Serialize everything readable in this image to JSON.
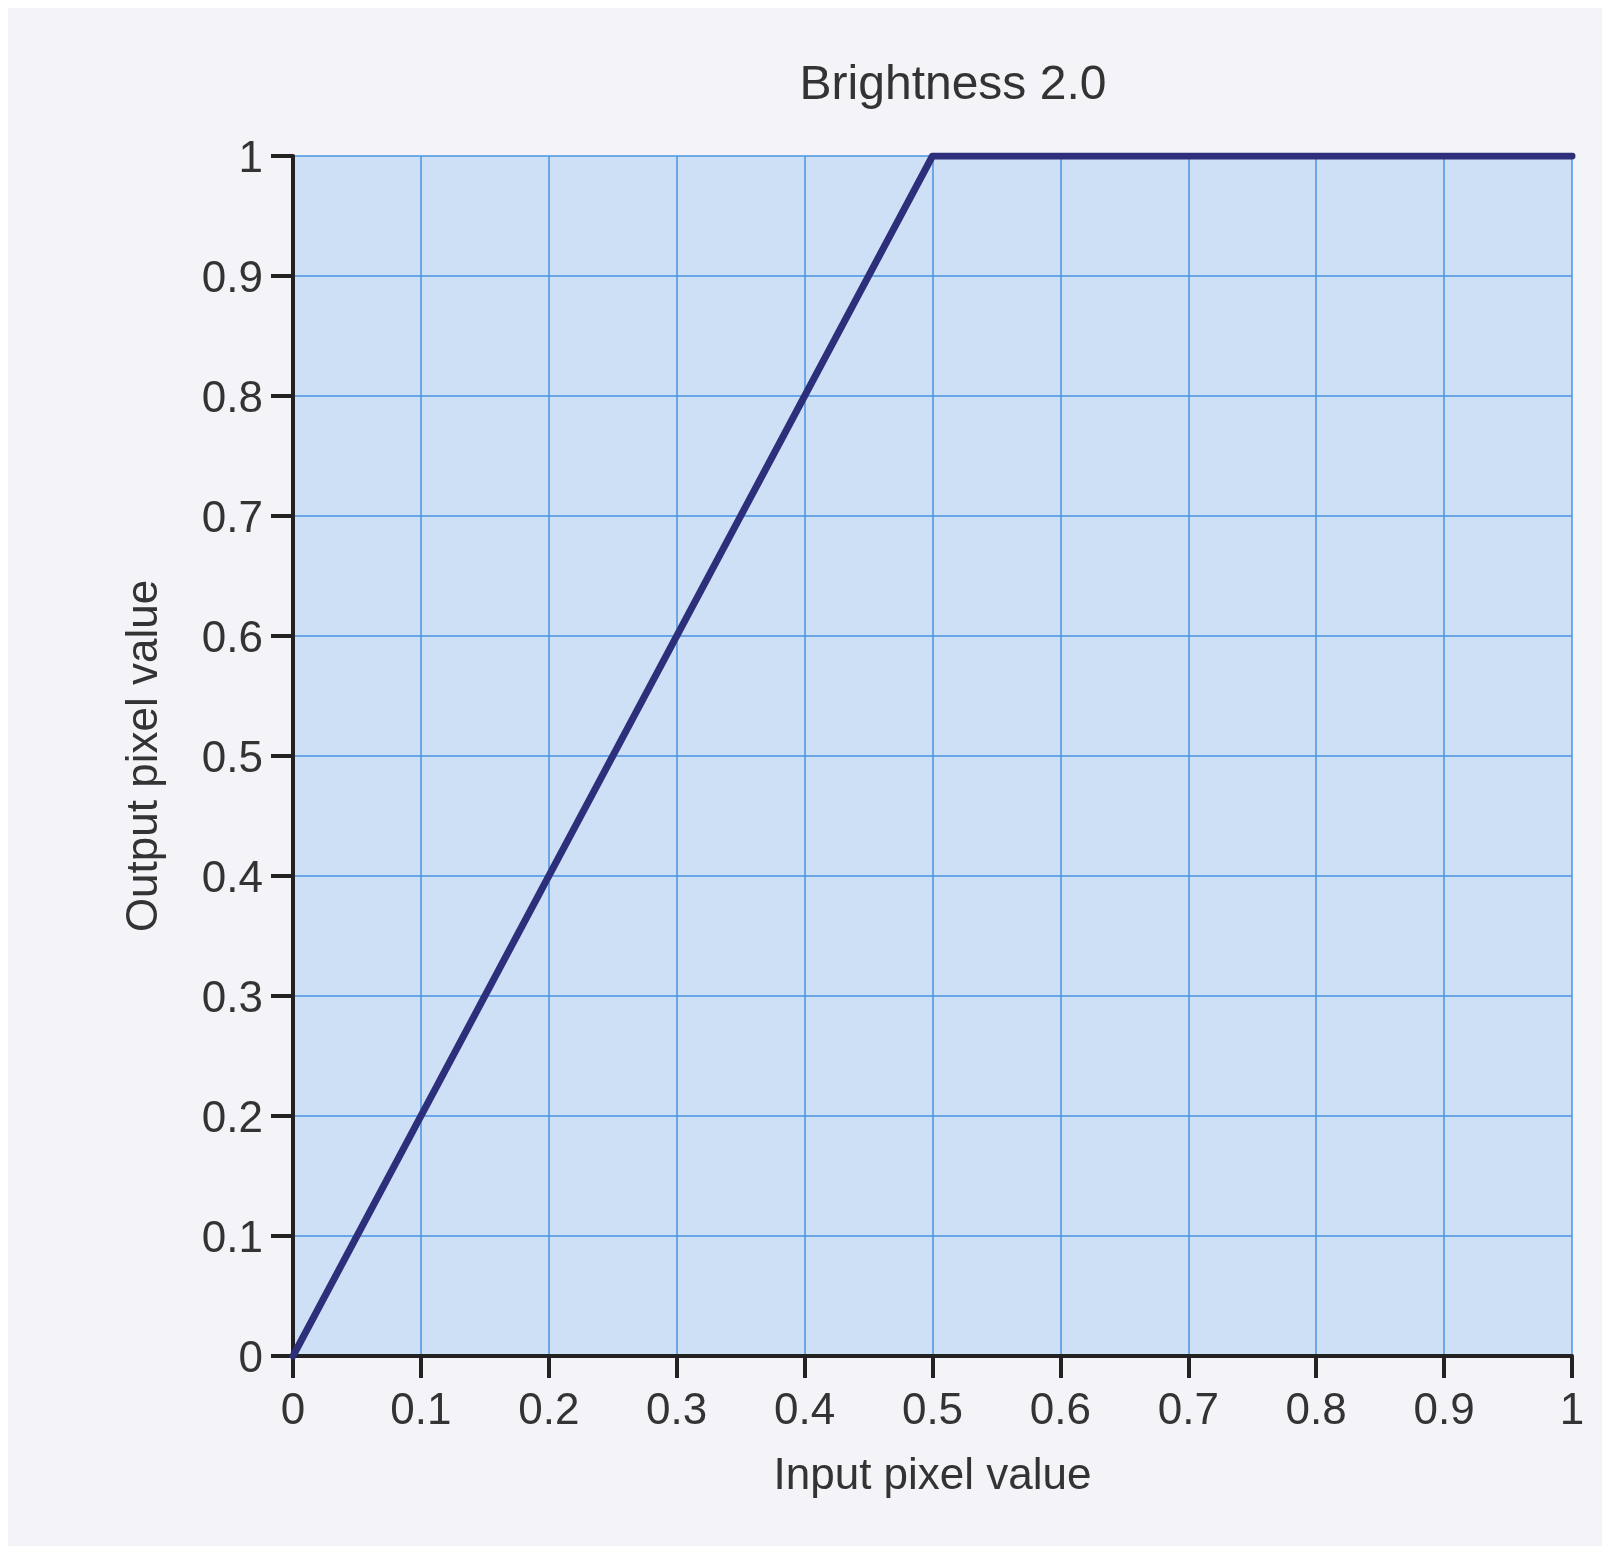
{
  "chart_data": {
    "type": "line",
    "title": "Brightness 2.0",
    "xlabel": "Input pixel value",
    "ylabel": "Output pixel value",
    "x": [
      0,
      0.5,
      1
    ],
    "series": [
      {
        "color": "#2e2f7a",
        "values": [
          0,
          1,
          1
        ]
      }
    ],
    "xlim": [
      0,
      1
    ],
    "ylim": [
      0,
      1
    ],
    "xticks": [
      0,
      0.1,
      0.2,
      0.3,
      0.4,
      0.5,
      0.6,
      0.7,
      0.8,
      0.9,
      1
    ],
    "yticks": [
      0,
      0.1,
      0.2,
      0.3,
      0.4,
      0.5,
      0.6,
      0.7,
      0.8,
      0.9,
      1
    ],
    "grid": true,
    "marker": "none",
    "line_style": "solid"
  }
}
